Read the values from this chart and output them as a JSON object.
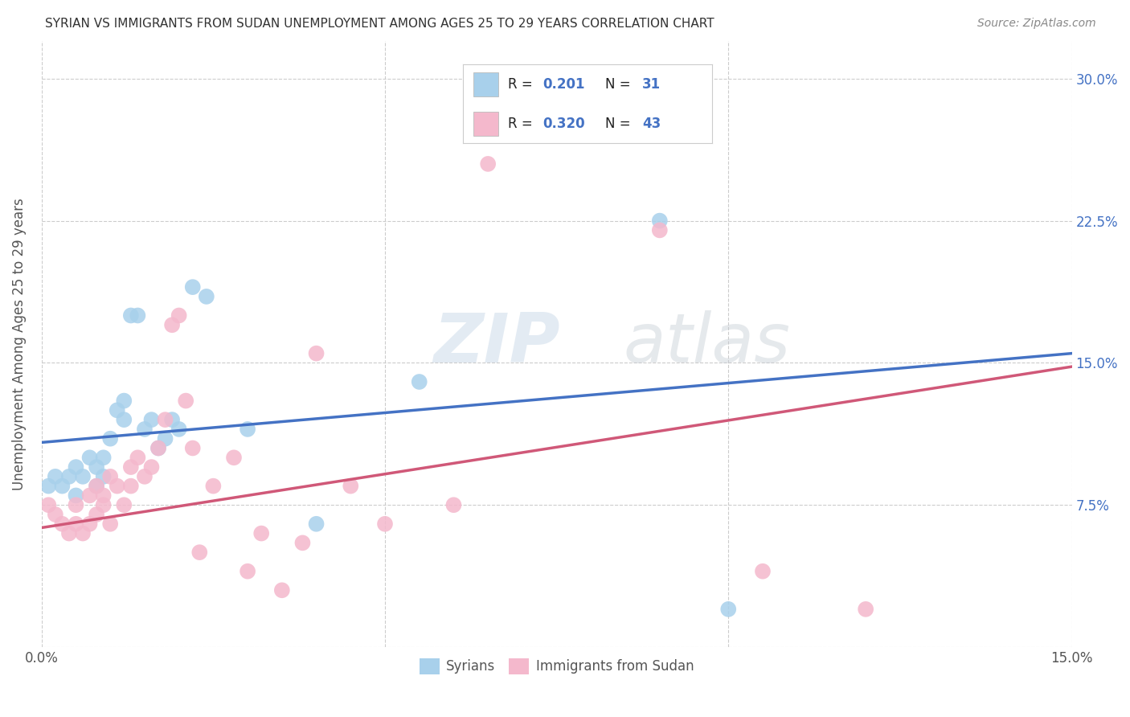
{
  "title": "SYRIAN VS IMMIGRANTS FROM SUDAN UNEMPLOYMENT AMONG AGES 25 TO 29 YEARS CORRELATION CHART",
  "source": "Source: ZipAtlas.com",
  "ylabel": "Unemployment Among Ages 25 to 29 years",
  "xlim": [
    0.0,
    0.15
  ],
  "ylim": [
    0.0,
    0.32
  ],
  "blue_color": "#a8d0eb",
  "pink_color": "#f4b8cc",
  "line_blue": "#4472c4",
  "line_pink": "#d05878",
  "legend_blue_fill": "#a8d0eb",
  "legend_pink_fill": "#f4b8cc",
  "watermark_zip": "ZIP",
  "watermark_atlas": "atlas",
  "syrians_x": [
    0.001,
    0.002,
    0.003,
    0.004,
    0.005,
    0.005,
    0.006,
    0.007,
    0.008,
    0.008,
    0.009,
    0.009,
    0.01,
    0.011,
    0.012,
    0.012,
    0.013,
    0.014,
    0.015,
    0.016,
    0.017,
    0.018,
    0.019,
    0.02,
    0.022,
    0.024,
    0.03,
    0.04,
    0.055,
    0.065,
    0.09,
    0.1
  ],
  "syrians_y": [
    0.085,
    0.09,
    0.085,
    0.09,
    0.08,
    0.095,
    0.09,
    0.1,
    0.095,
    0.085,
    0.09,
    0.1,
    0.11,
    0.125,
    0.13,
    0.12,
    0.175,
    0.175,
    0.115,
    0.12,
    0.105,
    0.11,
    0.12,
    0.115,
    0.19,
    0.185,
    0.115,
    0.065,
    0.14,
    0.27,
    0.225,
    0.02
  ],
  "sudan_x": [
    0.001,
    0.002,
    0.003,
    0.004,
    0.005,
    0.005,
    0.006,
    0.007,
    0.007,
    0.008,
    0.008,
    0.009,
    0.009,
    0.01,
    0.01,
    0.011,
    0.012,
    0.013,
    0.013,
    0.014,
    0.015,
    0.016,
    0.017,
    0.018,
    0.019,
    0.02,
    0.021,
    0.022,
    0.023,
    0.025,
    0.028,
    0.03,
    0.032,
    0.035,
    0.038,
    0.04,
    0.045,
    0.05,
    0.06,
    0.065,
    0.09,
    0.105,
    0.12
  ],
  "sudan_y": [
    0.075,
    0.07,
    0.065,
    0.06,
    0.065,
    0.075,
    0.06,
    0.065,
    0.08,
    0.07,
    0.085,
    0.08,
    0.075,
    0.065,
    0.09,
    0.085,
    0.075,
    0.085,
    0.095,
    0.1,
    0.09,
    0.095,
    0.105,
    0.12,
    0.17,
    0.175,
    0.13,
    0.105,
    0.05,
    0.085,
    0.1,
    0.04,
    0.06,
    0.03,
    0.055,
    0.155,
    0.085,
    0.065,
    0.075,
    0.255,
    0.22,
    0.04,
    0.02
  ],
  "blue_line_x0": 0.0,
  "blue_line_y0": 0.108,
  "blue_line_x1": 0.15,
  "blue_line_y1": 0.155,
  "pink_line_x0": 0.0,
  "pink_line_y0": 0.063,
  "pink_line_x1": 0.15,
  "pink_line_y1": 0.148,
  "bg_color": "#ffffff",
  "grid_color": "#cccccc"
}
